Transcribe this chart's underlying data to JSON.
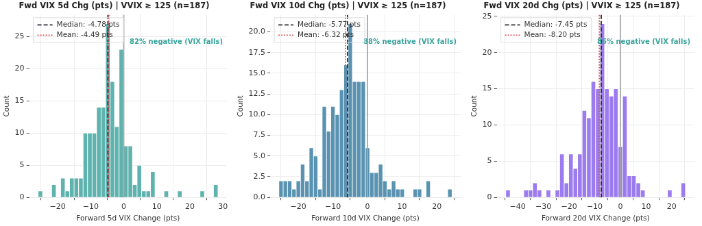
{
  "chart_data": [
    {
      "type": "histogram",
      "title": "Fwd VIX 5d Chg (pts) | VVIX ≥ 125 (n=187)",
      "xlabel": "Forward 5d VIX Change (pts)",
      "ylabel": "Count",
      "color": "#5fb3ae",
      "bins": [
        -25.9,
        -24.54,
        -23.18,
        -21.82,
        -20.46,
        -19.1,
        -17.74,
        -16.38,
        -15.02,
        -13.66,
        -12.3,
        -10.94,
        -9.58,
        -8.22,
        -6.86,
        -5.5,
        -4.14,
        -2.78,
        -1.42,
        -0.06,
        1.3,
        2.66,
        4.02,
        5.38,
        6.74,
        8.1,
        9.46,
        10.82,
        12.18,
        13.54,
        14.9,
        16.26,
        17.62,
        18.98,
        20.34,
        21.7,
        23.06,
        24.42,
        25.78,
        27.14,
        28.5
      ],
      "values": [
        1,
        0,
        0,
        2,
        0,
        3,
        1,
        3,
        3,
        3,
        10,
        10,
        10,
        14,
        14,
        27,
        18,
        11,
        23,
        8,
        8,
        2,
        5,
        1,
        1,
        4,
        0,
        0,
        1,
        0,
        0,
        1,
        0,
        0,
        0,
        0,
        1,
        0,
        0,
        2
      ],
      "xlim": [
        -28.6,
        31.2
      ],
      "ylim": [
        0,
        28.35
      ],
      "xticks": [
        {
          "value": -20,
          "label": "−20"
        },
        {
          "value": -10,
          "label": "−10"
        },
        0,
        10,
        20,
        30
      ],
      "yticks": [
        0,
        5,
        10,
        15,
        20,
        25
      ],
      "ref_lines": [
        {
          "axis": "x",
          "value": -4.78,
          "label": "Median: -4.78 pts",
          "color": "#2b2b35",
          "line_style": "dashed"
        },
        {
          "axis": "x",
          "value": -4.49,
          "label": "Mean: -4.49 pts",
          "color": "#e05a5a",
          "line_style": "dotted"
        },
        {
          "axis": "x",
          "value": 0,
          "color": "#a8a8a8",
          "line_style": "solid"
        }
      ],
      "annotations": [
        "82% negative (VIX falls)"
      ],
      "grid": true,
      "legend": "top left"
    },
    {
      "type": "histogram",
      "title": "Fwd VIX 10d Chg (pts) | VVIX ≥ 125 (n=187)",
      "xlabel": "Forward 10d VIX Change (pts)",
      "ylabel": "Count",
      "color": "#5a93b1",
      "bins": [
        -25.6,
        -24.35,
        -23.1,
        -21.85,
        -20.6,
        -19.35,
        -18.1,
        -16.85,
        -15.6,
        -14.35,
        -13.1,
        -11.85,
        -10.6,
        -9.35,
        -8.1,
        -6.85,
        -5.6,
        -4.35,
        -3.1,
        -1.85,
        -0.6,
        0.65,
        1.9,
        3.15,
        4.4,
        5.65,
        6.9,
        8.15,
        9.4,
        10.65,
        11.9,
        13.15,
        14.4,
        15.65,
        16.9,
        18.15,
        19.4,
        20.65,
        21.9,
        23.15,
        24.4
      ],
      "values": [
        2,
        2,
        2,
        1,
        2,
        4,
        2,
        6,
        5,
        1,
        11,
        8,
        11,
        10,
        13,
        16,
        21,
        14,
        14,
        14,
        6,
        3,
        3,
        4,
        2,
        1,
        2,
        1,
        1,
        0,
        0,
        1,
        1,
        0,
        2,
        0,
        0,
        0,
        0,
        1
      ],
      "xlim": [
        -28.1,
        26.9
      ],
      "ylim": [
        0,
        22.05
      ],
      "xticks": [
        {
          "value": -20,
          "label": "−20"
        },
        {
          "value": -10,
          "label": "−10"
        },
        0,
        10,
        20
      ],
      "yticks": [
        {
          "value": 0,
          "label": "0.0"
        },
        2.5,
        {
          "value": 5,
          "label": "5.0"
        },
        7.5,
        {
          "value": 10,
          "label": "10.0"
        },
        12.5,
        {
          "value": 15,
          "label": "15.0"
        },
        17.5,
        {
          "value": 20,
          "label": "20.0"
        }
      ],
      "ref_lines": [
        {
          "axis": "x",
          "value": -5.77,
          "label": "Median: -5.77 pts",
          "color": "#2b2b35",
          "line_style": "dashed"
        },
        {
          "axis": "x",
          "value": -6.32,
          "label": "Mean: -6.32 pts",
          "color": "#e05a5a",
          "line_style": "dotted"
        },
        {
          "axis": "x",
          "value": 0,
          "color": "#a8a8a8",
          "line_style": "solid"
        }
      ],
      "annotations": [
        "88% negative (VIX falls)"
      ],
      "grid": true,
      "legend": "top left"
    },
    {
      "type": "histogram",
      "title": "Fwd VIX 20d Chg (pts) | VVIX ≥ 125 (n=187)",
      "xlabel": "Forward 20d VIX Change (pts)",
      "ylabel": "Count",
      "color": "#9b7bee",
      "bins": [
        -44.65,
        -42.9,
        -41.15,
        -39.4,
        -37.65,
        -35.9,
        -34.15,
        -32.4,
        -30.65,
        -28.9,
        -27.15,
        -25.4,
        -23.65,
        -21.9,
        -20.15,
        -18.4,
        -16.65,
        -14.9,
        -13.15,
        -11.4,
        -9.65,
        -7.9,
        -6.15,
        -4.4,
        -2.65,
        -0.9,
        0.85,
        2.6,
        4.35,
        6.1,
        7.85,
        9.6,
        11.35,
        13.1,
        14.85,
        16.6,
        18.35,
        20.1,
        21.85,
        23.6,
        25.35
      ],
      "values": [
        1,
        0,
        0,
        0,
        1,
        1,
        2,
        1,
        0,
        1,
        0,
        1,
        6,
        2,
        6,
        4,
        6,
        12,
        11,
        16,
        15,
        24,
        15,
        14,
        15,
        7,
        14,
        3,
        3,
        2,
        1,
        0,
        0,
        0,
        0,
        0,
        1,
        0,
        0,
        2
      ],
      "xlim": [
        -48.15,
        28.85
      ],
      "ylim": [
        0,
        25.2
      ],
      "xticks": [
        {
          "value": -40,
          "label": "−40"
        },
        {
          "value": -30,
          "label": "−30"
        },
        {
          "value": -20,
          "label": "−20"
        },
        {
          "value": -10,
          "label": "−10"
        },
        0,
        10,
        20
      ],
      "yticks": [
        0,
        5,
        10,
        15,
        20,
        25
      ],
      "ref_lines": [
        {
          "axis": "x",
          "value": -7.45,
          "label": "Median: -7.45 pts",
          "color": "#2b2b35",
          "line_style": "dashed"
        },
        {
          "axis": "x",
          "value": -8.2,
          "label": "Mean: -8.20 pts",
          "color": "#e05a5a",
          "line_style": "dotted"
        },
        {
          "axis": "x",
          "value": 0,
          "color": "#a8a8a8",
          "line_style": "solid"
        }
      ],
      "annotations": [
        "86% negative (VIX falls)"
      ],
      "grid": true,
      "legend": "top left"
    }
  ]
}
